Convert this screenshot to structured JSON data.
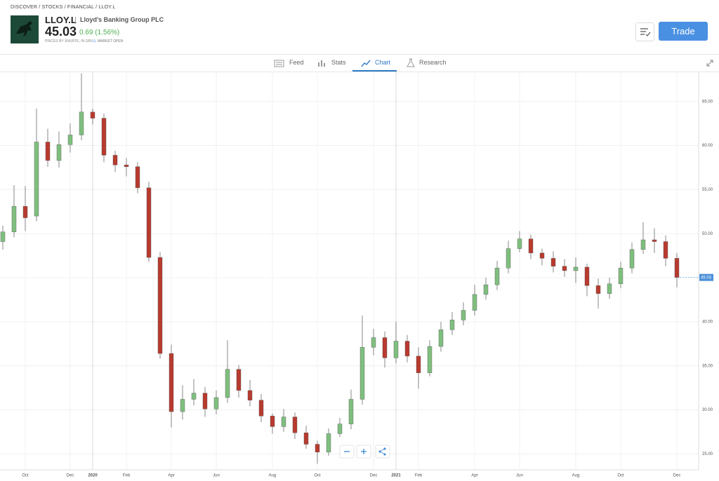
{
  "header": {
    "breadcrumb": "DISCOVER / STOCKS / FINANCIAL / LLOY.L",
    "ticker": "LLOY.L",
    "name": "Lloyd's Banking Group PLC",
    "price": "45.03",
    "change": "0.69 (1.56%)",
    "source": "PRICES BY XNURTE, IN GBX",
    "status": "MARKET OPEN",
    "trade_button": "Trade"
  },
  "tabs": [
    "Feed",
    "Stats",
    "Chart",
    "Research"
  ],
  "chart_data": {
    "type": "candlestick",
    "categories": [
      null,
      null,
      "Oct",
      null,
      null,
      null,
      "Dec",
      null,
      "2020",
      null,
      null,
      "Feb",
      null,
      null,
      null,
      "Apr",
      null,
      null,
      null,
      "Jun",
      null,
      null,
      null,
      null,
      "Aug",
      null,
      null,
      null,
      "Oct",
      null,
      null,
      null,
      null,
      "Dec",
      null,
      "2021",
      null,
      "Feb",
      null,
      null,
      null,
      null,
      "Apr",
      null,
      null,
      null,
      "Jun",
      null,
      null,
      null,
      null,
      "Aug",
      null,
      null,
      null,
      "Oct",
      null,
      null,
      null,
      null,
      "Dec"
    ],
    "open": [
      49.1,
      50.2,
      53.1,
      52.0,
      60.4,
      58.3,
      60.1,
      61.2,
      63.8,
      63.1,
      58.9,
      57.8,
      57.6,
      55.2,
      47.3,
      36.4,
      29.8,
      31.2,
      31.9,
      30.1,
      31.4,
      34.6,
      32.2,
      31.1,
      29.3,
      28.1,
      29.2,
      27.4,
      26.1,
      25.2,
      27.3,
      28.4,
      31.2,
      37.1,
      38.2,
      35.9,
      37.8,
      36.1,
      34.2,
      37.2,
      39.1,
      40.2,
      41.3,
      43.1,
      44.2,
      46.1,
      48.3,
      49.4,
      47.8,
      47.2,
      46.3,
      45.8,
      46.2,
      44.1,
      43.2,
      44.3,
      46.1,
      48.2,
      49.3,
      49.1,
      47.2
    ],
    "high": [
      50.9,
      55.5,
      55.4,
      64.2,
      61.9,
      61.6,
      62.5,
      68.2,
      64.2,
      63.6,
      59.4,
      58.6,
      58.1,
      55.9,
      47.9,
      37.4,
      32.8,
      33.5,
      32.6,
      32.2,
      37.9,
      35.1,
      33.4,
      31.8,
      29.6,
      30.1,
      29.7,
      28.2,
      26.5,
      27.9,
      29.1,
      32.3,
      40.7,
      39.2,
      38.9,
      40.0,
      38.5,
      37.1,
      37.9,
      40.0,
      41.1,
      42.2,
      44.2,
      45.0,
      46.9,
      49.2,
      50.3,
      49.9,
      48.3,
      48.0,
      47.1,
      47.3,
      46.6,
      44.9,
      45.0,
      46.8,
      49.0,
      51.3,
      50.6,
      49.8,
      47.8
    ],
    "low": [
      48.2,
      49.6,
      50.3,
      51.4,
      57.6,
      57.5,
      59.2,
      60.6,
      62.4,
      58.1,
      57.0,
      56.5,
      54.6,
      46.8,
      35.8,
      28.0,
      28.9,
      30.5,
      29.2,
      29.5,
      30.8,
      31.4,
      30.4,
      28.6,
      27.3,
      27.5,
      26.7,
      25.6,
      23.9,
      24.8,
      26.9,
      27.8,
      30.6,
      36.2,
      34.8,
      35.3,
      35.4,
      32.4,
      33.8,
      36.6,
      38.5,
      39.6,
      40.7,
      42.5,
      43.6,
      45.5,
      47.9,
      47.1,
      46.4,
      45.6,
      45.1,
      44.4,
      42.9,
      41.5,
      42.6,
      43.8,
      45.5,
      47.7,
      47.8,
      46.3,
      43.9
    ],
    "close": [
      50.2,
      53.1,
      51.8,
      60.4,
      58.3,
      60.1,
      61.2,
      63.8,
      63.1,
      58.9,
      57.8,
      57.6,
      55.2,
      47.3,
      36.4,
      29.8,
      31.2,
      31.9,
      30.1,
      31.4,
      34.6,
      32.2,
      31.1,
      29.3,
      28.1,
      29.2,
      27.4,
      26.1,
      25.2,
      27.3,
      28.4,
      31.2,
      37.1,
      38.2,
      35.9,
      37.8,
      36.1,
      34.2,
      37.2,
      39.1,
      40.2,
      41.3,
      43.1,
      44.2,
      46.1,
      48.3,
      49.4,
      47.8,
      47.2,
      46.3,
      45.8,
      46.2,
      44.1,
      43.2,
      44.3,
      46.1,
      48.2,
      49.3,
      49.1,
      47.2,
      45.03
    ],
    "up_color": "#7fbf7f",
    "down_color": "#b83a2e",
    "current_price": 45.03,
    "current_price_color": "#4a90d9",
    "ylim": [
      23.2,
      68.4
    ],
    "yticks": [
      {
        "value": 25,
        "label": "25.00"
      },
      {
        "value": 30,
        "label": "30.00"
      },
      {
        "value": 35,
        "label": "35.00"
      },
      {
        "value": 40,
        "label": "40.00"
      },
      {
        "value": 45,
        "label": "45.00"
      },
      {
        "value": 50,
        "label": "50.00"
      },
      {
        "value": 55,
        "label": "55.00"
      },
      {
        "value": 60,
        "label": "60.00"
      },
      {
        "value": 65,
        "label": "65.00"
      }
    ],
    "grid": true
  }
}
